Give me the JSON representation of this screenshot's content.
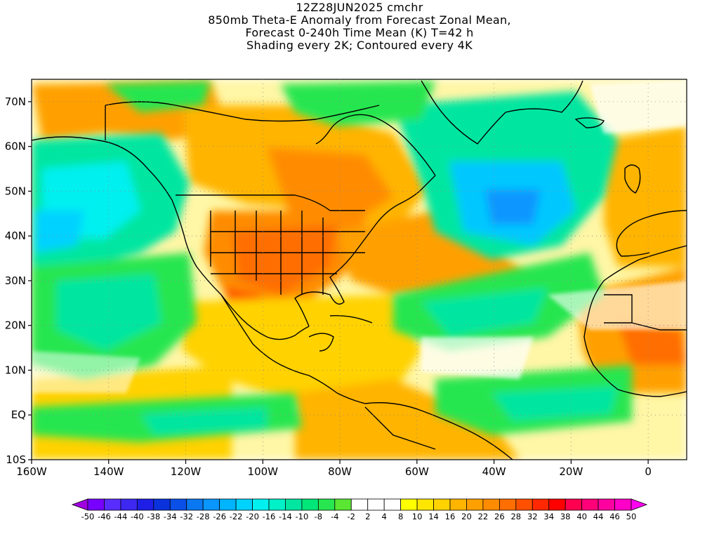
{
  "title": {
    "lines": [
      "12Z28JUN2025 cmchr",
      "850mb Theta-E Anomaly from Forecast Zonal Mean,",
      "Forecast 0-240h Time Mean (K) T=42 h",
      "Shading every 2K; Contoured every 4K"
    ]
  },
  "map": {
    "lon_range": [
      -160,
      10
    ],
    "lat_range": [
      -10,
      75
    ],
    "lon_ticks": [
      "160W",
      "140W",
      "120W",
      "100W",
      "80W",
      "60W",
      "40W",
      "20W",
      "0"
    ],
    "lat_ticks": [
      "70N",
      "60N",
      "50N",
      "40N",
      "30N",
      "20N",
      "10N",
      "EQ",
      "10S"
    ]
  },
  "colorbar": {
    "labels": [
      "-50",
      "-46",
      "-44",
      "-40",
      "-38",
      "-34",
      "-32",
      "-28",
      "-26",
      "-22",
      "-20",
      "-16",
      "-14",
      "-10",
      "-8",
      "-4",
      "-2",
      "2",
      "4",
      "8",
      "10",
      "14",
      "16",
      "20",
      "22",
      "26",
      "28",
      "32",
      "34",
      "38",
      "40",
      "44",
      "46",
      "50"
    ],
    "colors": [
      "#a000e0",
      "#7800ff",
      "#5a2dff",
      "#3c28f0",
      "#1e1ee6",
      "#0a32dc",
      "#0a50e6",
      "#0a78f0",
      "#0a96ff",
      "#00b4ff",
      "#00d2ff",
      "#00f0f0",
      "#00f0c8",
      "#00e6a0",
      "#00e678",
      "#28e650",
      "#5ae632",
      "#ffffff",
      "#ffffff",
      "#ffffff",
      "#ffff00",
      "#ffe600",
      "#ffd200",
      "#ffb400",
      "#ffa000",
      "#ff8c00",
      "#ff6e00",
      "#ff5000",
      "#ff2800",
      "#ff0000",
      "#ff0050",
      "#ff0078",
      "#ff00a0",
      "#ff00c8",
      "#ff00f0"
    ]
  }
}
